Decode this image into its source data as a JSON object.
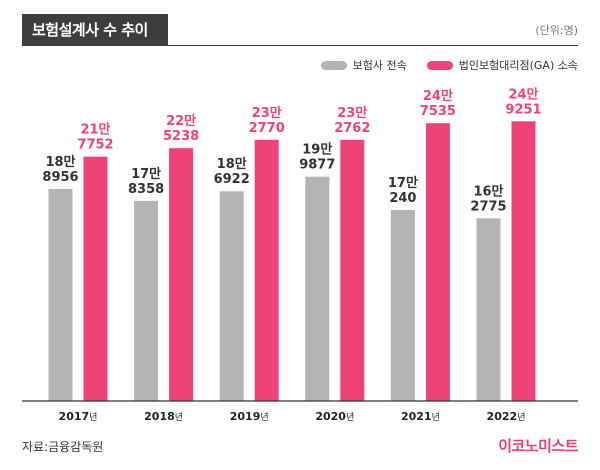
{
  "title": "보험설계사 수 추이",
  "unit": "(단위:명)",
  "legend": {
    "series1": "보험사 전속",
    "series2": "법인보험대리점(GA) 소속"
  },
  "source": "자료:금융감독원",
  "logo": "이코노미스트",
  "colors": {
    "series1": "#b4b4b4",
    "series2": "#ef4377",
    "axis": "#333333",
    "title_bg": "#3d3d3d"
  },
  "chart_data": {
    "type": "bar",
    "categories": [
      "2017",
      "2018",
      "2019",
      "2020",
      "2021",
      "2022"
    ],
    "category_suffix": "년",
    "series": [
      {
        "name": "보험사 전속",
        "values": [
          188956,
          178358,
          186922,
          199877,
          170240,
          162775
        ],
        "labels": [
          [
            "18만",
            "8956"
          ],
          [
            "17만",
            "8358"
          ],
          [
            "18만",
            "6922"
          ],
          [
            "19만",
            "9877"
          ],
          [
            "17만",
            "240"
          ],
          [
            "16만",
            "2775"
          ]
        ]
      },
      {
        "name": "법인보험대리점(GA) 소속",
        "values": [
          217752,
          225238,
          232770,
          232762,
          247535,
          249251
        ],
        "labels": [
          [
            "21만",
            "7752"
          ],
          [
            "22만",
            "5238"
          ],
          [
            "23만",
            "2770"
          ],
          [
            "23만",
            "2762"
          ],
          [
            "24만",
            "7535"
          ],
          [
            "24만",
            "9251"
          ]
        ]
      }
    ],
    "ylim": [
      0,
      270000
    ],
    "grid": false,
    "legend_position": "top-right"
  }
}
